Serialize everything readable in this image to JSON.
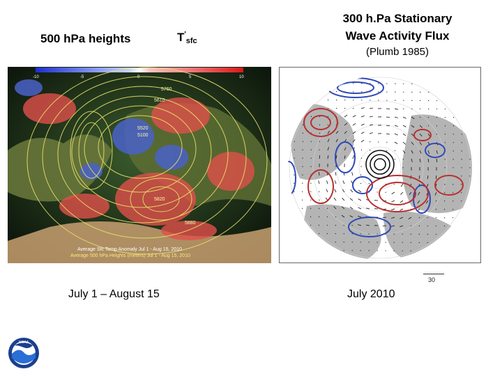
{
  "titles": {
    "left": "500 hPa heights",
    "mid_main": "T",
    "mid_prime": "'",
    "mid_sub": "sfc",
    "right_line1": "300 h.Pa Stationary",
    "right_line2": "Wave Activity Flux",
    "right_sub": "(Plumb 1985)"
  },
  "left_panel": {
    "colorbar_ticks": [
      "-10",
      "-5",
      "0",
      "5",
      "10"
    ],
    "contour_labels": [
      "5760",
      "5610",
      "5520",
      "5100",
      "5820",
      "5880"
    ],
    "footer_line1": "Average Sfc Temp Anomaly Jul 1 - Aug 15, 2010",
    "footer_line2": "Average 500 hPa Heights (meters) Jul 1 - Aug 15, 2010"
  },
  "right_panel": {
    "scale_value": "30"
  },
  "captions": {
    "left": "July 1 – August 15",
    "right": "July 2010"
  },
  "logo": {
    "text": "NOAA"
  }
}
